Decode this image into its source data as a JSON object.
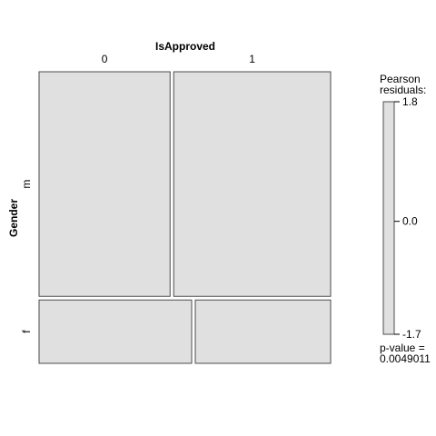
{
  "chart_data": {
    "type": "mosaic",
    "title": "",
    "column_variable": "IsApproved",
    "row_variable": "Gender",
    "columns": [
      "0",
      "1"
    ],
    "rows": [
      "m",
      "f"
    ],
    "row_proportions": [
      0.78,
      0.22
    ],
    "column_proportions_within_row": {
      "m": [
        0.455,
        0.545
      ],
      "f": [
        0.53,
        0.47
      ]
    },
    "legend": {
      "title_line1": "Pearson",
      "title_line2": "residuals:",
      "ticks": [
        "1.8",
        "0.0",
        "-1.7"
      ],
      "range": [
        -1.7,
        1.8
      ]
    },
    "p_value_label": "p-value =",
    "p_value": "0.0049011",
    "fill_color": "#e0e0e0",
    "border_color": "#4d4d4d"
  }
}
